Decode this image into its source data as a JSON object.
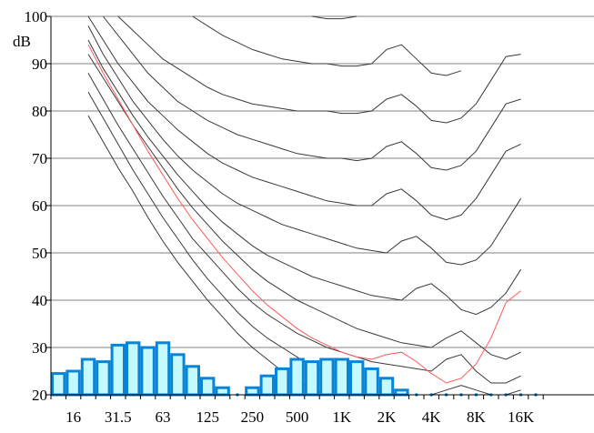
{
  "chart_data": {
    "type": "bar",
    "title": "",
    "xlabel": "",
    "ylabel": "dB",
    "ylim": [
      20,
      100
    ],
    "yticks": [
      "20",
      "30",
      "40",
      "50",
      "60",
      "70",
      "80",
      "90",
      "100"
    ],
    "xtick_labels": [
      "16",
      "31.5",
      "63",
      "125",
      "250",
      "500",
      "1K",
      "2K",
      "4K",
      "8K",
      "16K"
    ],
    "grid": true,
    "colors": {
      "bar_fill": "#c4faff",
      "bar_edge": "#0a84d6",
      "contour": "#3a3a3a",
      "hearing_threshold": "#ff5a5a"
    },
    "band_centers": [
      "12.5",
      "16",
      "20",
      "25",
      "31.5",
      "40",
      "50",
      "63",
      "80",
      "100",
      "125",
      "160",
      "200",
      "250",
      "315",
      "400",
      "500",
      "630",
      "800",
      "1K",
      "1.25K",
      "1.6K",
      "2K",
      "2.5K",
      "3.15K",
      "4K",
      "5K",
      "6.3K",
      "8K",
      "10K",
      "12.5K",
      "16K",
      "20K"
    ],
    "values": [
      24.5,
      25,
      27.5,
      27,
      30.5,
      31,
      30,
      31,
      28.5,
      26,
      23.5,
      21.5,
      20,
      21.5,
      24,
      25.5,
      27.5,
      27,
      27.5,
      27.5,
      27,
      25.5,
      23.5,
      21,
      20,
      20,
      20,
      20,
      20,
      20,
      20,
      20,
      20
    ],
    "contour_band_index": [
      2,
      3,
      4,
      5,
      6,
      7,
      8,
      9,
      10,
      11,
      12,
      13,
      14,
      15,
      16,
      17,
      18,
      19,
      20,
      21,
      22,
      23,
      24,
      25,
      26,
      27,
      28,
      29,
      30,
      31
    ],
    "contours": [
      {
        "values": [
          null,
          null,
          null,
          null,
          null,
          null,
          null,
          null,
          null,
          null,
          null,
          null,
          null,
          null,
          null,
          100,
          99.5,
          99.5,
          100,
          null,
          null,
          null,
          null,
          null,
          null,
          null,
          null,
          null,
          null,
          null
        ]
      },
      {
        "values": [
          null,
          null,
          null,
          null,
          null,
          null,
          null,
          100,
          98,
          96,
          94.5,
          93,
          92,
          91,
          90.5,
          90,
          90,
          89.5,
          89.5,
          90,
          93,
          94,
          91,
          88,
          87.5,
          88.5,
          null,
          null,
          null,
          null
        ]
      },
      {
        "values": [
          null,
          null,
          100,
          97,
          94,
          91,
          89,
          87,
          85,
          83.5,
          82.5,
          81.5,
          81,
          80.5,
          80,
          80,
          80,
          79.5,
          79.5,
          80,
          82.5,
          83.5,
          81,
          78,
          77.5,
          78.5,
          81.5,
          86.5,
          91.5,
          92
        ]
      },
      {
        "values": [
          null,
          100,
          96,
          92,
          88,
          85,
          82,
          80,
          78,
          76.5,
          75,
          74,
          73,
          72,
          71,
          70.5,
          70,
          70,
          69.5,
          70,
          72.5,
          73.5,
          71,
          68,
          67.5,
          68.5,
          71.5,
          76.5,
          81.5,
          82.5
        ]
      },
      {
        "values": [
          100,
          95,
          90,
          86,
          82,
          79,
          76,
          73.5,
          71,
          69,
          67.5,
          66,
          65,
          64,
          63,
          62,
          61,
          60.5,
          60,
          60,
          62.5,
          63.5,
          61,
          58,
          57,
          58,
          61.5,
          66.5,
          71.5,
          73
        ]
      },
      {
        "values": [
          98,
          92,
          87,
          82,
          78,
          74,
          70.5,
          67.5,
          65,
          62.5,
          60.5,
          59,
          57.5,
          56,
          55,
          54,
          53,
          52,
          51,
          50.5,
          50,
          52.5,
          53.5,
          51,
          48,
          47.5,
          48.5,
          51.5,
          56.5,
          61.5
        ]
      },
      {
        "values": [
          95,
          89,
          84,
          79,
          74.5,
          70.5,
          66.5,
          63,
          59.5,
          56.5,
          54,
          51.5,
          49.5,
          48,
          46.5,
          45,
          44,
          43,
          42,
          41,
          40.5,
          40,
          42.5,
          43.5,
          41,
          38,
          37,
          38.5,
          41.5,
          46.5
        ]
      },
      {
        "values": [
          92,
          87,
          82,
          77,
          72.5,
          68,
          63.5,
          59.5,
          56,
          52.5,
          49.5,
          46.5,
          44,
          42,
          40,
          38.5,
          37,
          35.5,
          34,
          33,
          32,
          31,
          30.5,
          30,
          32,
          33.5,
          31,
          28.5,
          27.5,
          29
        ]
      },
      {
        "values": [
          88,
          82.5,
          77,
          72,
          67,
          62,
          57.5,
          53,
          49.5,
          46,
          42.5,
          39.5,
          37,
          35,
          33,
          31.5,
          30,
          29,
          28,
          27,
          26.5,
          26,
          25.5,
          25,
          27.5,
          28.5,
          25,
          22.5,
          22.5,
          24
        ]
      },
      {
        "values": [
          84,
          78.5,
          73,
          67.5,
          62.5,
          57.5,
          53,
          48.5,
          44.5,
          41,
          37.5,
          34.5,
          32,
          30,
          28,
          26,
          24.5,
          23,
          22,
          21,
          20.5,
          20,
          20,
          20,
          21,
          22,
          21,
          20,
          20,
          21
        ]
      },
      {
        "values": [
          79,
          73.5,
          68,
          63,
          57.5,
          52.5,
          48,
          44,
          40,
          36.5,
          33,
          30,
          27.5,
          25,
          23,
          21,
          20,
          null,
          null,
          null,
          null,
          null,
          null,
          null,
          null,
          null,
          null,
          null,
          null,
          null
        ]
      }
    ],
    "hearing_threshold": [
      94,
      88,
      82.5,
      77,
      71.5,
      66.5,
      61.5,
      57,
      53,
      49,
      45.5,
      42,
      39,
      36.5,
      34,
      32,
      30.5,
      29,
      28,
      27.5,
      28.5,
      29,
      27,
      24.5,
      22.5,
      23.5,
      26.5,
      32,
      39.5,
      42
    ]
  }
}
